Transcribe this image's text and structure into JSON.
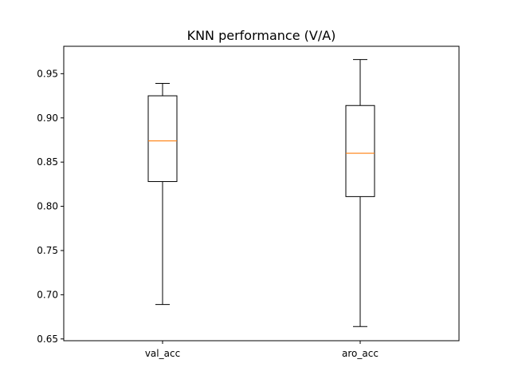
{
  "chart_data": {
    "type": "box",
    "title": "KNN performance (V/A)",
    "xlabel": "",
    "ylabel": "",
    "ylim": [
      0.648,
      0.981
    ],
    "yticks": [
      0.65,
      0.7,
      0.75,
      0.8,
      0.85,
      0.9,
      0.95
    ],
    "ytick_labels": [
      "0.65",
      "0.70",
      "0.75",
      "0.80",
      "0.85",
      "0.90",
      "0.95"
    ],
    "categories": [
      "val_acc",
      "aro_acc"
    ],
    "boxes": [
      {
        "label": "val_acc",
        "whisker_low": 0.689,
        "q1": 0.828,
        "median": 0.874,
        "q3": 0.925,
        "whisker_high": 0.939
      },
      {
        "label": "aro_acc",
        "whisker_low": 0.664,
        "q1": 0.811,
        "median": 0.86,
        "q3": 0.914,
        "whisker_high": 0.966
      }
    ],
    "grid": false,
    "colors": {
      "box": "#000000",
      "median": "#ff7f0e"
    }
  }
}
